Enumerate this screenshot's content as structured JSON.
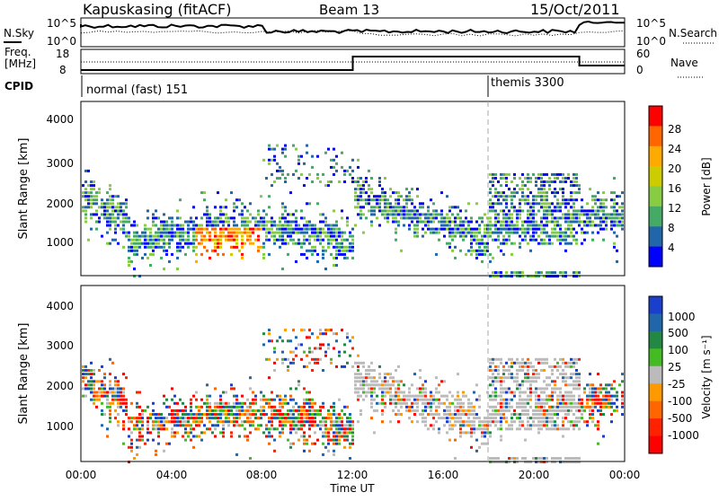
{
  "header": {
    "station": "Kapuskasing (fitACF)",
    "beam": "Beam 13",
    "date": "15/Oct/2011"
  },
  "panels": {
    "nsky_label": "N.Sky",
    "nsky_tick_top": "10^5",
    "nsky_tick_bot": "10^0",
    "nsearch_label": "N.Search",
    "nsearch_tick_top": "10^5",
    "nsearch_tick_bot": "10^0",
    "freq_label": "Freq.",
    "freq_unit": "[MHz]",
    "freq_ticks": [
      "18",
      "8"
    ],
    "nave_label": "Nave",
    "nave_ticks": [
      "60",
      "0"
    ],
    "cpid_label": "CPID",
    "cpid_1": "normal (fast) 151",
    "cpid_2": "themis 3300"
  },
  "chart_data": [
    {
      "type": "heatmap",
      "name": "power",
      "ylabel": "Slant Range [km]",
      "yticks": [
        "4000",
        "3000",
        "2000",
        "1000"
      ],
      "ylim": [
        180,
        4500
      ],
      "xlim_hours": [
        0,
        24
      ],
      "colorbar_label": "Power [dB]",
      "colorbar_ticks": [
        "28",
        "24",
        "20",
        "16",
        "12",
        "8",
        "4"
      ],
      "colors": [
        "#ff0000",
        "#ff6600",
        "#ffaa00",
        "#cccc00",
        "#88cc44",
        "#44aa66",
        "#2266aa",
        "#0000ff"
      ]
    },
    {
      "type": "heatmap",
      "name": "velocity",
      "ylabel": "Slant Range [km]",
      "yticks": [
        "4000",
        "3000",
        "2000",
        "1000"
      ],
      "ylim": [
        180,
        4500
      ],
      "xlim_hours": [
        0,
        24
      ],
      "colorbar_label": "Velocity [m s⁻¹]",
      "colorbar_ticks": [
        "1000",
        "500",
        "100",
        "25",
        "-25",
        "-100",
        "-500",
        "-1000"
      ],
      "colors": [
        "#1a3fcc",
        "#2266aa",
        "#228844",
        "#44bb22",
        "#bbbbbb",
        "#ff9900",
        "#ff6600",
        "#ff2200",
        "#ff0000"
      ],
      "xticks": [
        "00:00",
        "04:00",
        "08:00",
        "12:00",
        "16:00",
        "20:00",
        "00:00"
      ],
      "xlabel": "Time UT"
    }
  ]
}
